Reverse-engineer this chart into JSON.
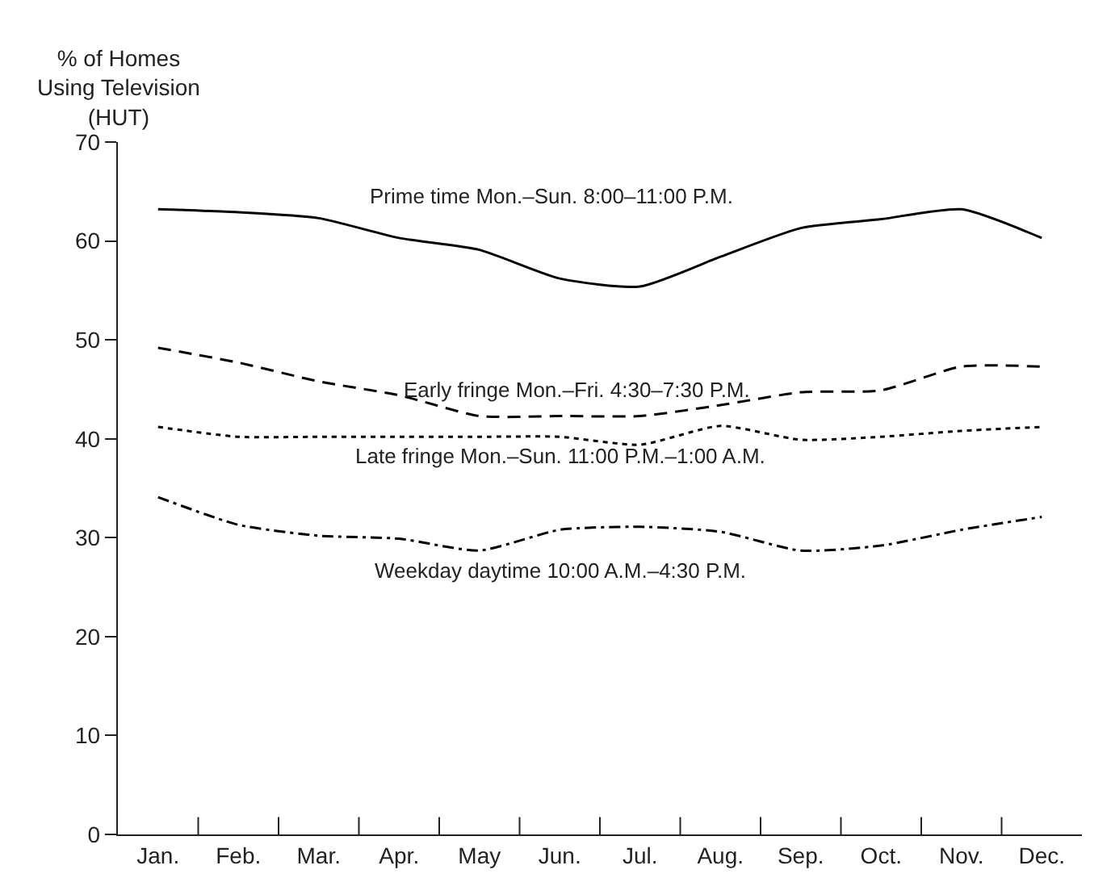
{
  "chart_data": {
    "type": "line",
    "ylabel": "% of Homes\nUsing Television\n(HUT)",
    "categories": [
      "Jan.",
      "Feb.",
      "Mar.",
      "Apr.",
      "May",
      "Jun.",
      "Jul.",
      "Aug.",
      "Sep.",
      "Oct.",
      "Nov.",
      "Dec."
    ],
    "series": [
      {
        "name": "Prime time Mon.–Sun. 8:00–11:00 P.M.",
        "color": "#000000",
        "line_style": "solid",
        "values": [
          63.2,
          62.9,
          62.3,
          60.3,
          59.1,
          56.2,
          55.4,
          58.4,
          61.3,
          62.2,
          63.2,
          60.3
        ]
      },
      {
        "name": "Early fringe Mon.–Fri. 4:30–7:30 P.M.",
        "color": "#000000",
        "line_style": "dashed",
        "values": [
          49.2,
          47.7,
          45.8,
          44.4,
          42.3,
          42.3,
          42.3,
          43.4,
          44.7,
          44.9,
          47.3,
          47.3
        ]
      },
      {
        "name": "Late fringe Mon.–Sun. 11:00 P.M.–1:00 A.M.",
        "color": "#000000",
        "line_style": "dotted",
        "values": [
          41.2,
          40.2,
          40.2,
          40.2,
          40.2,
          40.2,
          39.4,
          41.3,
          39.9,
          40.2,
          40.8,
          41.2
        ]
      },
      {
        "name": "Weekday daytime 10:00 A.M.–4:30 P.M.",
        "color": "#000000",
        "line_style": "dashdot",
        "values": [
          34.1,
          31.3,
          30.2,
          29.9,
          28.7,
          30.8,
          31.1,
          30.6,
          28.7,
          29.2,
          30.8,
          32.1
        ]
      }
    ],
    "ylim": [
      0,
      70
    ],
    "yticks": [
      0,
      10,
      20,
      30,
      40,
      50,
      60,
      70
    ],
    "grid": false,
    "legend": false,
    "marker": "none"
  }
}
